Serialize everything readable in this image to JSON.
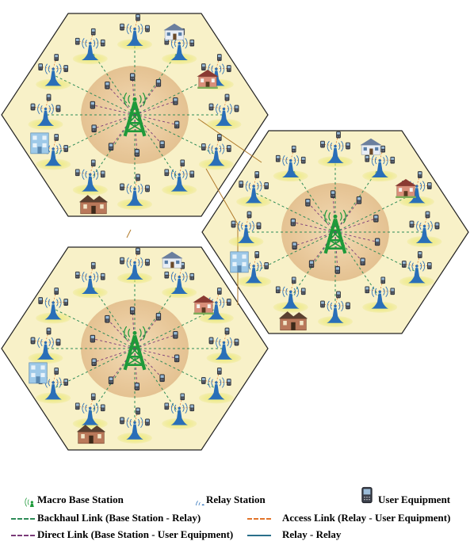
{
  "legend": {
    "macro_base_station": "Macro Base Station",
    "relay_station": "Relay Station",
    "user_equipment": "User Equipment",
    "backhaul_link": "Backhaul Link (Base Station - Relay)",
    "access_link": "Access Link (Relay - User Equipment)",
    "direct_link": "Direct Link (Base Station - User Equipment)",
    "relay_relay": "Relay - Relay"
  },
  "colors": {
    "cell_fill": "#f8f1c8",
    "cell_border": "#222222",
    "macro_zone": "#e8c9a0",
    "macro_tower": "#1e9a3a",
    "relay_tower": "#2a6fb8",
    "relay_ground": "#e4e25a",
    "backhaul_link": "#2e8b57",
    "access_link": "#e2742a",
    "direct_link": "#7a3a78",
    "relay_relay": "#2a6f8a"
  },
  "icons": [
    "macro-tower-icon",
    "relay-tower-icon",
    "user-equipment-icon",
    "house-icon"
  ]
}
